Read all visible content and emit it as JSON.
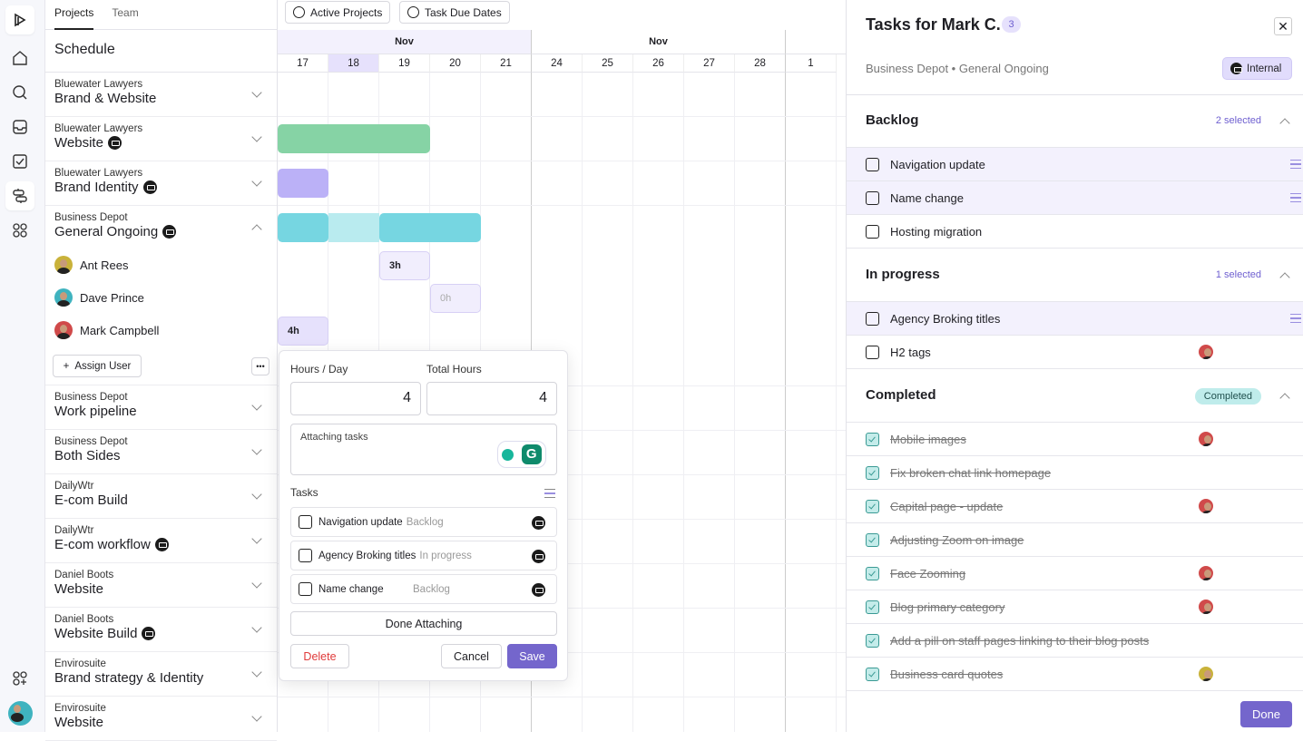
{
  "rail": {
    "icons": [
      "logo-icon",
      "home-icon",
      "search-icon",
      "inbox-icon",
      "tasks-icon",
      "schedule-icon",
      "apps-icon",
      "add-apps-icon",
      "user-avatar"
    ]
  },
  "left": {
    "tabs": [
      "Projects",
      "Team"
    ],
    "title": "Schedule",
    "projects": [
      {
        "client": "Bluewater Lawyers",
        "name": "Brand & Website",
        "lock": false
      },
      {
        "client": "Bluewater Lawyers",
        "name": "Website",
        "lock": true
      },
      {
        "client": "Bluewater Lawyers",
        "name": "Brand Identity",
        "lock": true
      },
      {
        "client": "Business Depot",
        "name": "General Ongoing",
        "lock": true,
        "expanded": true
      },
      {
        "client": "Business Depot",
        "name": "Work pipeline",
        "lock": false
      },
      {
        "client": "Business Depot",
        "name": "Both Sides",
        "lock": false
      },
      {
        "client": "DailyWtr",
        "name": "E-com Build",
        "lock": false
      },
      {
        "client": "DailyWtr",
        "name": "E-com workflow",
        "lock": true
      },
      {
        "client": "Daniel Boots",
        "name": "Website",
        "lock": false
      },
      {
        "client": "Daniel Boots",
        "name": "Website Build",
        "lock": true
      },
      {
        "client": "Envirosuite",
        "name": "Brand strategy & Identity",
        "lock": false
      },
      {
        "client": "Envirosuite",
        "name": "Website",
        "lock": false
      }
    ],
    "users": [
      {
        "name": "Ant Rees",
        "color": "#c9b23a"
      },
      {
        "name": "Dave Prince",
        "color": "#3fb3bf"
      },
      {
        "name": "Mark Campbell",
        "color": "#d04a4a"
      }
    ],
    "assign_label": "Assign User"
  },
  "timeline": {
    "filters": [
      "Active Projects",
      "Task Due Dates"
    ],
    "months": [
      "Nov",
      "Nov"
    ],
    "days": [
      "17",
      "18",
      "19",
      "20",
      "21",
      "24",
      "25",
      "26",
      "27",
      "28",
      "1"
    ],
    "today": "18",
    "chips": [
      "3h",
      "0h",
      "4h"
    ],
    "colors": {
      "green": "#86d3a5",
      "purple": "#bbb1f7",
      "cyan": "#76d6e1",
      "cyan_light": "#b9ebef"
    }
  },
  "popup": {
    "hours_day_label": "Hours / Day",
    "hours_day": "4",
    "total_label": "Total Hours",
    "total": "4",
    "notes": "Attaching tasks",
    "tasks_label": "Tasks",
    "tasks": [
      {
        "name": "Navigation update",
        "status": "Backlog"
      },
      {
        "name": "Agency Broking titles",
        "status": "In progress"
      },
      {
        "name": "Name change",
        "status": "Backlog"
      }
    ],
    "done_attaching": "Done Attaching",
    "delete": "Delete",
    "cancel": "Cancel",
    "save": "Save"
  },
  "panel": {
    "title": "Tasks for Mark C.",
    "count": "3",
    "breadcrumb": "Business Depot • General Ongoing",
    "badge": "Internal",
    "backlog": {
      "title": "Backlog",
      "selected": "2 selected",
      "tasks": [
        {
          "name": "Navigation update",
          "hl": true
        },
        {
          "name": "Name change",
          "hl": true
        },
        {
          "name": "Hosting migration",
          "hl": false
        }
      ]
    },
    "progress": {
      "title": "In progress",
      "selected": "1 selected",
      "tasks": [
        {
          "name": "Agency Broking titles",
          "hl": true
        },
        {
          "name": "H2 tags",
          "hl": false,
          "avatar": "#d04a4a"
        }
      ]
    },
    "completed": {
      "title": "Completed",
      "pill": "Completed",
      "tasks": [
        {
          "name": "Mobile images",
          "avatar": "#d04a4a"
        },
        {
          "name": "Fix broken chat link homepage"
        },
        {
          "name": "Capital page - update",
          "avatar": "#d04a4a"
        },
        {
          "name": "Adjusting Zoom on image"
        },
        {
          "name": "Face Zooming",
          "avatar": "#d04a4a"
        },
        {
          "name": "Blog primary category",
          "avatar": "#d04a4a"
        },
        {
          "name": "Add a pill on staff pages linking to their blog posts"
        },
        {
          "name": "Business card quotes",
          "avatar": "#c9b23a"
        }
      ]
    },
    "done": "Done",
    "accent": "#7466cc"
  }
}
